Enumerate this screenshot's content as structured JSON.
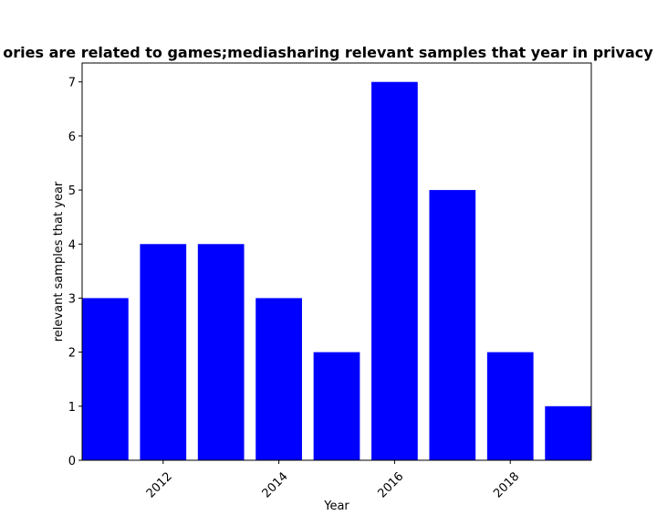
{
  "chart_data": {
    "type": "bar",
    "title": "ories are related to games;mediasharing relevant samples that year in privacy p",
    "xlabel": "Year",
    "ylabel": "relevant samples that year",
    "x": [
      2011,
      2012,
      2013,
      2014,
      2015,
      2016,
      2017,
      2018,
      2019
    ],
    "values": [
      3,
      4,
      4,
      3,
      2,
      7,
      5,
      2,
      1
    ],
    "bar_color": "#0000ff",
    "xlim": [
      2010.6,
      2019.4
    ],
    "ylim": [
      0,
      7.35
    ],
    "xticks": [
      2012,
      2014,
      2016,
      2018
    ],
    "yticks": [
      0,
      1,
      2,
      3,
      4,
      5,
      6,
      7
    ],
    "grid": false,
    "legend": "none"
  }
}
